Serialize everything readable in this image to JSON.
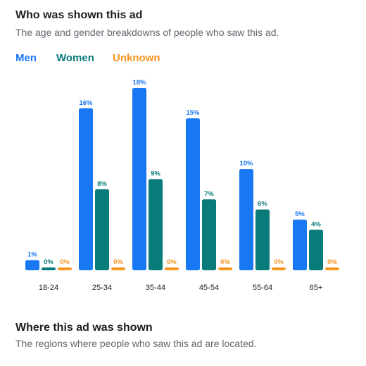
{
  "section1": {
    "title": "Who was shown this ad",
    "subtitle": "The age and gender breakdowns of people who saw this ad."
  },
  "section2": {
    "title": "Where this ad was shown",
    "subtitle": "The regions where people who saw this ad are located."
  },
  "chart_data": {
    "type": "bar",
    "title": "",
    "xlabel": "",
    "ylabel": "",
    "ylim": [
      0,
      18
    ],
    "grid": false,
    "legend_position": "top-left",
    "categories": [
      "18-24",
      "25-34",
      "35-44",
      "45-54",
      "55-64",
      "65+"
    ],
    "series": [
      {
        "name": "Men",
        "color": "#1877f2",
        "values": [
          1,
          16,
          18,
          15,
          10,
          5
        ]
      },
      {
        "name": "Women",
        "color": "#0a7b7b",
        "values": [
          0,
          8,
          9,
          7,
          6,
          4
        ]
      },
      {
        "name": "Unknown",
        "color": "#f7931e",
        "values": [
          0,
          0,
          0,
          0,
          0,
          0
        ]
      }
    ],
    "value_suffix": "%"
  }
}
